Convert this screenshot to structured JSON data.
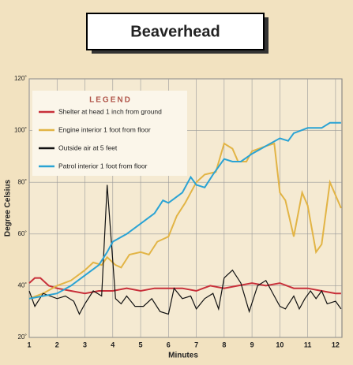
{
  "chart_data": {
    "type": "line",
    "title": "Beaverhead",
    "xlabel": "Minutes",
    "ylabel": "Degree Celsius",
    "legend_title": "LEGEND",
    "legend": "upper left",
    "grid": true,
    "xlim": [
      1,
      12.23
    ],
    "xticks": [
      1,
      2,
      3,
      4,
      5,
      6,
      7,
      8,
      9,
      10,
      11,
      12
    ],
    "ylim": [
      20,
      120
    ],
    "yticks": [
      {
        "value": 20,
        "label": "20˚"
      },
      {
        "value": 40,
        "label": "40˚"
      },
      {
        "value": 60,
        "label": "60˚"
      },
      {
        "value": 80,
        "label": "80˚"
      },
      {
        "value": 100,
        "label": "100˚"
      },
      {
        "value": 120,
        "label": "120˚"
      }
    ],
    "series": [
      {
        "name": "Shelter at head 1 inch from ground",
        "color": "#c8303a",
        "x": [
          1,
          1.2,
          1.4,
          1.7,
          2,
          2.5,
          3,
          3.5,
          4,
          4.5,
          5,
          5.5,
          6,
          6.5,
          7,
          7.5,
          8,
          8.5,
          9,
          9.5,
          10,
          10.5,
          11,
          11.5,
          12,
          12.2
        ],
        "values": [
          41,
          43,
          43,
          40,
          39,
          38,
          37,
          38,
          38,
          39,
          38,
          39,
          39,
          39,
          38,
          40,
          39,
          40,
          41,
          40,
          41,
          39,
          39,
          38,
          37,
          37
        ]
      },
      {
        "name": "Engine interior 1 foot from floor",
        "color": "#e2b445",
        "x": [
          1,
          1.5,
          2,
          2.5,
          3,
          3.3,
          3.6,
          3.8,
          4.1,
          4.3,
          4.6,
          5,
          5.3,
          5.6,
          6,
          6.3,
          6.6,
          7,
          7.3,
          7.7,
          8,
          8.3,
          8.5,
          8.8,
          9,
          9.5,
          9.8,
          10,
          10.2,
          10.5,
          10.8,
          11,
          11.3,
          11.5,
          11.8,
          12,
          12.2
        ],
        "values": [
          35,
          37,
          40,
          42,
          46,
          49,
          48,
          51,
          48,
          47,
          52,
          53,
          52,
          57,
          59,
          67,
          72,
          80,
          83,
          84,
          95,
          93,
          88,
          88,
          92,
          94,
          95,
          76,
          73,
          59,
          76,
          71,
          53,
          56,
          80,
          75,
          70
        ]
      },
      {
        "name": "Outside air at 5 feet",
        "color": "#111111",
        "x": [
          1,
          1.2,
          1.5,
          2,
          2.3,
          2.6,
          2.8,
          3,
          3.3,
          3.6,
          3.8,
          4.1,
          4.3,
          4.5,
          4.8,
          5.1,
          5.4,
          5.7,
          6,
          6.2,
          6.5,
          6.8,
          7,
          7.3,
          7.6,
          7.8,
          8,
          8.3,
          8.6,
          8.9,
          9.2,
          9.5,
          9.8,
          10,
          10.2,
          10.5,
          10.7,
          10.9,
          11.1,
          11.3,
          11.5,
          11.7,
          12,
          12.2
        ],
        "values": [
          38,
          32,
          37,
          35,
          36,
          34,
          29,
          33,
          38,
          36,
          79,
          35,
          33,
          36,
          32,
          32,
          35,
          30,
          29,
          39,
          35,
          36,
          31,
          35,
          37,
          31,
          43,
          46,
          41,
          30,
          40,
          42,
          36,
          32,
          31,
          36,
          31,
          35,
          38,
          35,
          38,
          33,
          34,
          31
        ]
      },
      {
        "name": "Patrol  interior 1 foot from floor",
        "color": "#2aa3d4",
        "x": [
          1,
          1.5,
          2,
          2.5,
          3,
          3.5,
          3.8,
          4,
          4.5,
          5,
          5.5,
          5.8,
          6,
          6.5,
          6.8,
          7,
          7.3,
          7.6,
          8,
          8.3,
          8.6,
          9,
          9.5,
          10,
          10.3,
          10.5,
          11,
          11.5,
          11.8,
          12.2
        ],
        "values": [
          35,
          36,
          37,
          40,
          44,
          48,
          53,
          57,
          60,
          64,
          68,
          73,
          72,
          76,
          82,
          79,
          78,
          83,
          89,
          88,
          88,
          91,
          94,
          97,
          96,
          99,
          101,
          101,
          103,
          103
        ]
      }
    ]
  }
}
